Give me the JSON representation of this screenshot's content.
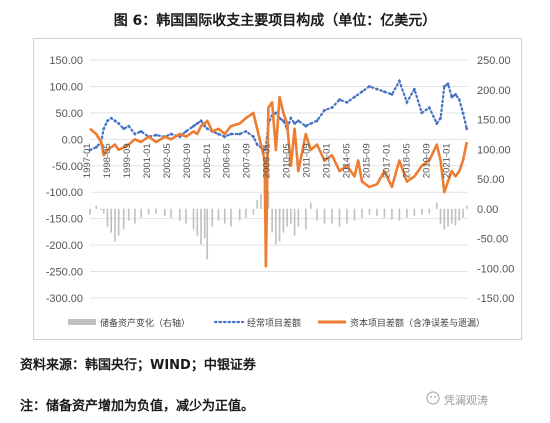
{
  "title": "图 6：韩国国际收支主要项目构成（单位：亿美元）",
  "source": "资料来源：韩国央行；WIND；中银证券",
  "note": "注：储备资产增加为负值，减少为正值。",
  "watermark": "凭澜观涛",
  "colors": {
    "reserve": "#bfbfbf",
    "current": "#4472c4",
    "capital": "#ed7d31"
  },
  "chart_data": {
    "type": "line",
    "x_start": "1997-01",
    "x_end": "2022-04",
    "xticks": [
      "1997-01",
      "1998-05",
      "1999-09",
      "2001-01",
      "2002-05",
      "2003-09",
      "2005-01",
      "2006-05",
      "2007-09",
      "2009-01",
      "2010-05",
      "2011-09",
      "2013-01",
      "2014-05",
      "2015-09",
      "2017-01",
      "2018-05",
      "2019-09",
      "2021-01"
    ],
    "left_axis": {
      "ylim": [
        -300,
        150
      ],
      "ticks": [
        "-300.00",
        "-250.00",
        "-200.00",
        "-150.00",
        "-100.00",
        "-50.00",
        "0.00",
        "50.00",
        "100.00",
        "150.00"
      ]
    },
    "right_axis": {
      "ylim": [
        -150,
        250
      ],
      "ticks": [
        "-150.00",
        "-100.00",
        "-50.00",
        "0.00",
        "50.00",
        "100.00",
        "150.00",
        "200.00",
        "250.00"
      ]
    },
    "legend": [
      "储备资产变化（右轴）",
      "经常项目差额",
      "资本项目差额（含净误差与遗漏）"
    ],
    "series": [
      {
        "name": "储备资产变化（右轴）",
        "type": "bar",
        "axis": "right",
        "points": [
          [
            "1997-01",
            -10
          ],
          [
            "1997-06",
            5
          ],
          [
            "1997-10",
            -2
          ],
          [
            "1997-12",
            -8
          ],
          [
            "1998-03",
            -30
          ],
          [
            "1998-06",
            -40
          ],
          [
            "1998-09",
            -55
          ],
          [
            "1998-12",
            -45
          ],
          [
            "1999-04",
            -35
          ],
          [
            "1999-08",
            -20
          ],
          [
            "2000-01",
            -25
          ],
          [
            "2000-06",
            -15
          ],
          [
            "2000-12",
            -10
          ],
          [
            "2001-06",
            -8
          ],
          [
            "2002-01",
            -12
          ],
          [
            "2002-06",
            -15
          ],
          [
            "2003-01",
            -20
          ],
          [
            "2003-06",
            -25
          ],
          [
            "2003-12",
            -35
          ],
          [
            "2004-03",
            -45
          ],
          [
            "2004-06",
            -60
          ],
          [
            "2004-09",
            -50
          ],
          [
            "2004-11",
            -85
          ],
          [
            "2005-03",
            -30
          ],
          [
            "2005-08",
            -20
          ],
          [
            "2006-01",
            -25
          ],
          [
            "2006-06",
            -30
          ],
          [
            "2007-01",
            -20
          ],
          [
            "2007-06",
            -15
          ],
          [
            "2007-12",
            -10
          ],
          [
            "2008-03",
            15
          ],
          [
            "2008-06",
            25
          ],
          [
            "2008-09",
            40
          ],
          [
            "2008-10",
            80
          ],
          [
            "2008-12",
            30
          ],
          [
            "2009-03",
            -40
          ],
          [
            "2009-06",
            -60
          ],
          [
            "2009-09",
            -55
          ],
          [
            "2009-12",
            -40
          ],
          [
            "2010-03",
            -30
          ],
          [
            "2010-06",
            -25
          ],
          [
            "2010-09",
            -45
          ],
          [
            "2010-12",
            -30
          ],
          [
            "2011-06",
            -35
          ],
          [
            "2011-10",
            10
          ],
          [
            "2012-03",
            -20
          ],
          [
            "2012-09",
            -25
          ],
          [
            "2013-03",
            -25
          ],
          [
            "2013-09",
            -30
          ],
          [
            "2014-03",
            -25
          ],
          [
            "2014-09",
            -20
          ],
          [
            "2015-03",
            -15
          ],
          [
            "2015-09",
            -10
          ],
          [
            "2016-03",
            -12
          ],
          [
            "2016-09",
            -15
          ],
          [
            "2017-03",
            -18
          ],
          [
            "2017-09",
            -20
          ],
          [
            "2018-03",
            -15
          ],
          [
            "2018-09",
            -12
          ],
          [
            "2019-03",
            -10
          ],
          [
            "2019-09",
            -8
          ],
          [
            "2020-03",
            10
          ],
          [
            "2020-06",
            -25
          ],
          [
            "2020-09",
            -35
          ],
          [
            "2020-12",
            -30
          ],
          [
            "2021-03",
            -25
          ],
          [
            "2021-06",
            -28
          ],
          [
            "2021-09",
            -20
          ],
          [
            "2021-12",
            -15
          ],
          [
            "2022-03",
            5
          ]
        ]
      },
      {
        "name": "经常项目差额",
        "type": "line-dotted",
        "axis": "left",
        "points": [
          [
            "1997-01",
            -20
          ],
          [
            "1997-06",
            -15
          ],
          [
            "1997-10",
            -5
          ],
          [
            "1997-12",
            20
          ],
          [
            "1998-03",
            35
          ],
          [
            "1998-06",
            40
          ],
          [
            "1998-09",
            35
          ],
          [
            "1998-12",
            30
          ],
          [
            "1999-04",
            20
          ],
          [
            "1999-08",
            25
          ],
          [
            "2000-01",
            10
          ],
          [
            "2000-06",
            15
          ],
          [
            "2000-12",
            5
          ],
          [
            "2001-06",
            8
          ],
          [
            "2002-01",
            5
          ],
          [
            "2002-06",
            10
          ],
          [
            "2003-01",
            5
          ],
          [
            "2003-06",
            15
          ],
          [
            "2003-12",
            25
          ],
          [
            "2004-03",
            30
          ],
          [
            "2004-06",
            35
          ],
          [
            "2004-09",
            25
          ],
          [
            "2004-11",
            20
          ],
          [
            "2005-03",
            15
          ],
          [
            "2005-08",
            10
          ],
          [
            "2006-01",
            5
          ],
          [
            "2006-06",
            10
          ],
          [
            "2007-01",
            10
          ],
          [
            "2007-06",
            15
          ],
          [
            "2007-12",
            5
          ],
          [
            "2008-03",
            -10
          ],
          [
            "2008-06",
            -15
          ],
          [
            "2008-09",
            -20
          ],
          [
            "2008-10",
            -15
          ],
          [
            "2008-12",
            30
          ],
          [
            "2009-03",
            45
          ],
          [
            "2009-06",
            50
          ],
          [
            "2009-09",
            40
          ],
          [
            "2009-12",
            35
          ],
          [
            "2010-03",
            20
          ],
          [
            "2010-06",
            40
          ],
          [
            "2010-09",
            30
          ],
          [
            "2010-12",
            35
          ],
          [
            "2011-06",
            25
          ],
          [
            "2011-10",
            30
          ],
          [
            "2012-03",
            35
          ],
          [
            "2012-09",
            55
          ],
          [
            "2013-03",
            60
          ],
          [
            "2013-09",
            75
          ],
          [
            "2014-03",
            70
          ],
          [
            "2014-09",
            80
          ],
          [
            "2015-03",
            90
          ],
          [
            "2015-09",
            100
          ],
          [
            "2016-03",
            95
          ],
          [
            "2016-09",
            90
          ],
          [
            "2017-03",
            85
          ],
          [
            "2017-09",
            110
          ],
          [
            "2018-03",
            70
          ],
          [
            "2018-09",
            95
          ],
          [
            "2019-03",
            50
          ],
          [
            "2019-09",
            60
          ],
          [
            "2020-03",
            30
          ],
          [
            "2020-06",
            40
          ],
          [
            "2020-09",
            100
          ],
          [
            "2020-12",
            105
          ],
          [
            "2021-03",
            80
          ],
          [
            "2021-06",
            85
          ],
          [
            "2021-09",
            75
          ],
          [
            "2021-12",
            50
          ],
          [
            "2022-03",
            20
          ]
        ]
      },
      {
        "name": "资本项目差额（含净误差与遗漏）",
        "type": "line",
        "axis": "left",
        "points": [
          [
            "1997-01",
            20
          ],
          [
            "1997-06",
            10
          ],
          [
            "1997-10",
            -5
          ],
          [
            "1997-12",
            -30
          ],
          [
            "1998-03",
            -20
          ],
          [
            "1998-06",
            -15
          ],
          [
            "1998-09",
            -10
          ],
          [
            "1998-12",
            -20
          ],
          [
            "1999-04",
            -15
          ],
          [
            "1999-08",
            -10
          ],
          [
            "2000-01",
            0
          ],
          [
            "2000-06",
            -5
          ],
          [
            "2000-12",
            5
          ],
          [
            "2001-06",
            -5
          ],
          [
            "2002-01",
            5
          ],
          [
            "2002-06",
            0
          ],
          [
            "2003-01",
            10
          ],
          [
            "2003-06",
            5
          ],
          [
            "2003-12",
            15
          ],
          [
            "2004-03",
            10
          ],
          [
            "2004-06",
            25
          ],
          [
            "2004-09",
            30
          ],
          [
            "2004-11",
            35
          ],
          [
            "2005-03",
            15
          ],
          [
            "2005-08",
            20
          ],
          [
            "2006-01",
            10
          ],
          [
            "2006-06",
            25
          ],
          [
            "2007-01",
            30
          ],
          [
            "2007-06",
            40
          ],
          [
            "2007-12",
            50
          ],
          [
            "2008-03",
            20
          ],
          [
            "2008-06",
            -10
          ],
          [
            "2008-09",
            -40
          ],
          [
            "2008-10",
            -240
          ],
          [
            "2008-12",
            60
          ],
          [
            "2009-03",
            70
          ],
          [
            "2009-06",
            -20
          ],
          [
            "2009-09",
            80
          ],
          [
            "2009-12",
            50
          ],
          [
            "2010-03",
            30
          ],
          [
            "2010-06",
            -50
          ],
          [
            "2010-09",
            20
          ],
          [
            "2010-12",
            -60
          ],
          [
            "2011-06",
            10
          ],
          [
            "2011-10",
            -20
          ],
          [
            "2012-03",
            -10
          ],
          [
            "2012-09",
            -40
          ],
          [
            "2013-03",
            -30
          ],
          [
            "2013-09",
            -60
          ],
          [
            "2014-03",
            -50
          ],
          [
            "2014-09",
            -70
          ],
          [
            "2014-12",
            -40
          ],
          [
            "2015-03",
            -80
          ],
          [
            "2015-09",
            -90
          ],
          [
            "2016-03",
            -85
          ],
          [
            "2016-09",
            -60
          ],
          [
            "2017-03",
            -90
          ],
          [
            "2017-09",
            -40
          ],
          [
            "2018-03",
            -80
          ],
          [
            "2018-09",
            -70
          ],
          [
            "2019-03",
            -50
          ],
          [
            "2019-09",
            -40
          ],
          [
            "2020-03",
            -10
          ],
          [
            "2020-06",
            -40
          ],
          [
            "2020-09",
            -100
          ],
          [
            "2020-12",
            -80
          ],
          [
            "2021-03",
            -60
          ],
          [
            "2021-06",
            -70
          ],
          [
            "2021-09",
            -60
          ],
          [
            "2021-12",
            -40
          ],
          [
            "2022-03",
            -5
          ]
        ]
      }
    ]
  }
}
